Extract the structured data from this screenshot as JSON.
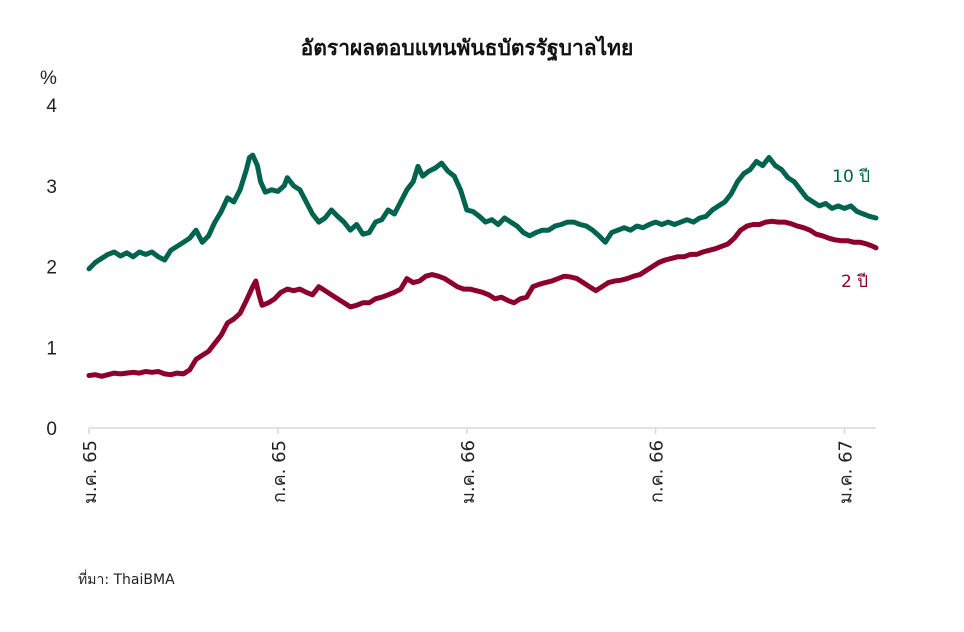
{
  "chart_data": {
    "type": "line",
    "title": "อัตราผลตอบแทนพันธบัตรรัฐบาลไทย",
    "yunit": "%",
    "ylim": [
      0,
      4
    ],
    "yticks": [
      "0",
      "1",
      "2",
      "3",
      "4"
    ],
    "xlim": [
      0,
      25
    ],
    "xticks": [
      {
        "pos": 0,
        "label": "ม.ค. 65"
      },
      {
        "pos": 6,
        "label": "ก.ค. 65"
      },
      {
        "pos": 12,
        "label": "ม.ค. 66"
      },
      {
        "pos": 18,
        "label": "ก.ค. 66"
      },
      {
        "pos": 24,
        "label": "ม.ค. 67"
      }
    ],
    "grid": false,
    "source": "ที่มา: ThaiBMA",
    "series": [
      {
        "name": "10 ปี",
        "color": "#00634f",
        "points": [
          [
            0,
            1.97
          ],
          [
            0.2,
            2.05
          ],
          [
            0.4,
            2.1
          ],
          [
            0.6,
            2.15
          ],
          [
            0.8,
            2.18
          ],
          [
            1.0,
            2.13
          ],
          [
            1.2,
            2.17
          ],
          [
            1.4,
            2.12
          ],
          [
            1.6,
            2.18
          ],
          [
            1.8,
            2.15
          ],
          [
            2.0,
            2.18
          ],
          [
            2.2,
            2.12
          ],
          [
            2.4,
            2.08
          ],
          [
            2.6,
            2.2
          ],
          [
            2.8,
            2.25
          ],
          [
            3.0,
            2.3
          ],
          [
            3.2,
            2.35
          ],
          [
            3.4,
            2.45
          ],
          [
            3.6,
            2.3
          ],
          [
            3.8,
            2.38
          ],
          [
            4.0,
            2.55
          ],
          [
            4.2,
            2.68
          ],
          [
            4.4,
            2.85
          ],
          [
            4.6,
            2.8
          ],
          [
            4.8,
            2.95
          ],
          [
            5.0,
            3.2
          ],
          [
            5.1,
            3.35
          ],
          [
            5.2,
            3.38
          ],
          [
            5.35,
            3.25
          ],
          [
            5.45,
            3.05
          ],
          [
            5.6,
            2.92
          ],
          [
            5.8,
            2.95
          ],
          [
            6.0,
            2.93
          ],
          [
            6.2,
            3.0
          ],
          [
            6.3,
            3.1
          ],
          [
            6.5,
            3.0
          ],
          [
            6.7,
            2.95
          ],
          [
            6.9,
            2.8
          ],
          [
            7.1,
            2.65
          ],
          [
            7.3,
            2.55
          ],
          [
            7.5,
            2.6
          ],
          [
            7.7,
            2.7
          ],
          [
            7.9,
            2.62
          ],
          [
            8.1,
            2.55
          ],
          [
            8.3,
            2.45
          ],
          [
            8.5,
            2.52
          ],
          [
            8.7,
            2.4
          ],
          [
            8.9,
            2.42
          ],
          [
            9.1,
            2.55
          ],
          [
            9.3,
            2.58
          ],
          [
            9.5,
            2.7
          ],
          [
            9.7,
            2.65
          ],
          [
            9.9,
            2.8
          ],
          [
            10.1,
            2.95
          ],
          [
            10.3,
            3.05
          ],
          [
            10.45,
            3.24
          ],
          [
            10.6,
            3.12
          ],
          [
            10.8,
            3.18
          ],
          [
            11.0,
            3.22
          ],
          [
            11.2,
            3.28
          ],
          [
            11.4,
            3.18
          ],
          [
            11.6,
            3.12
          ],
          [
            11.8,
            2.95
          ],
          [
            12.0,
            2.7
          ],
          [
            12.2,
            2.68
          ],
          [
            12.4,
            2.62
          ],
          [
            12.6,
            2.55
          ],
          [
            12.8,
            2.58
          ],
          [
            13.0,
            2.52
          ],
          [
            13.2,
            2.6
          ],
          [
            13.4,
            2.55
          ],
          [
            13.6,
            2.5
          ],
          [
            13.8,
            2.42
          ],
          [
            14.0,
            2.38
          ],
          [
            14.2,
            2.42
          ],
          [
            14.4,
            2.45
          ],
          [
            14.6,
            2.45
          ],
          [
            14.8,
            2.5
          ],
          [
            15.0,
            2.52
          ],
          [
            15.2,
            2.55
          ],
          [
            15.4,
            2.55
          ],
          [
            15.6,
            2.52
          ],
          [
            15.8,
            2.5
          ],
          [
            16.0,
            2.45
          ],
          [
            16.2,
            2.38
          ],
          [
            16.4,
            2.3
          ],
          [
            16.6,
            2.42
          ],
          [
            16.8,
            2.45
          ],
          [
            17.0,
            2.48
          ],
          [
            17.2,
            2.45
          ],
          [
            17.4,
            2.5
          ],
          [
            17.6,
            2.48
          ],
          [
            17.8,
            2.52
          ],
          [
            18.0,
            2.55
          ],
          [
            18.2,
            2.52
          ],
          [
            18.4,
            2.55
          ],
          [
            18.6,
            2.52
          ],
          [
            18.8,
            2.55
          ],
          [
            19.0,
            2.58
          ],
          [
            19.2,
            2.55
          ],
          [
            19.4,
            2.6
          ],
          [
            19.6,
            2.62
          ],
          [
            19.8,
            2.7
          ],
          [
            20.0,
            2.75
          ],
          [
            20.2,
            2.8
          ],
          [
            20.4,
            2.9
          ],
          [
            20.6,
            3.05
          ],
          [
            20.8,
            3.15
          ],
          [
            21.0,
            3.2
          ],
          [
            21.2,
            3.3
          ],
          [
            21.4,
            3.25
          ],
          [
            21.6,
            3.35
          ],
          [
            21.8,
            3.25
          ],
          [
            22.0,
            3.2
          ],
          [
            22.2,
            3.1
          ],
          [
            22.4,
            3.05
          ],
          [
            22.6,
            2.95
          ],
          [
            22.8,
            2.85
          ],
          [
            23.0,
            2.8
          ],
          [
            23.2,
            2.75
          ],
          [
            23.4,
            2.78
          ],
          [
            23.6,
            2.72
          ],
          [
            23.8,
            2.75
          ],
          [
            24.0,
            2.72
          ],
          [
            24.2,
            2.75
          ],
          [
            24.4,
            2.68
          ],
          [
            24.6,
            2.65
          ],
          [
            24.8,
            2.62
          ],
          [
            25.0,
            2.6
          ]
        ]
      },
      {
        "name": "2 ปี",
        "color": "#8c002d",
        "points": [
          [
            0,
            0.65
          ],
          [
            0.2,
            0.66
          ],
          [
            0.4,
            0.64
          ],
          [
            0.6,
            0.66
          ],
          [
            0.8,
            0.68
          ],
          [
            1.0,
            0.67
          ],
          [
            1.2,
            0.68
          ],
          [
            1.4,
            0.69
          ],
          [
            1.6,
            0.68
          ],
          [
            1.8,
            0.7
          ],
          [
            2.0,
            0.69
          ],
          [
            2.2,
            0.7
          ],
          [
            2.4,
            0.67
          ],
          [
            2.6,
            0.66
          ],
          [
            2.8,
            0.68
          ],
          [
            3.0,
            0.67
          ],
          [
            3.2,
            0.72
          ],
          [
            3.4,
            0.85
          ],
          [
            3.6,
            0.9
          ],
          [
            3.8,
            0.95
          ],
          [
            4.0,
            1.05
          ],
          [
            4.2,
            1.15
          ],
          [
            4.4,
            1.3
          ],
          [
            4.6,
            1.35
          ],
          [
            4.8,
            1.42
          ],
          [
            5.0,
            1.58
          ],
          [
            5.2,
            1.75
          ],
          [
            5.3,
            1.82
          ],
          [
            5.4,
            1.65
          ],
          [
            5.5,
            1.52
          ],
          [
            5.7,
            1.55
          ],
          [
            5.9,
            1.6
          ],
          [
            6.1,
            1.68
          ],
          [
            6.3,
            1.72
          ],
          [
            6.5,
            1.7
          ],
          [
            6.7,
            1.72
          ],
          [
            6.9,
            1.68
          ],
          [
            7.1,
            1.65
          ],
          [
            7.3,
            1.75
          ],
          [
            7.5,
            1.7
          ],
          [
            7.7,
            1.65
          ],
          [
            7.9,
            1.6
          ],
          [
            8.1,
            1.55
          ],
          [
            8.3,
            1.5
          ],
          [
            8.5,
            1.52
          ],
          [
            8.7,
            1.55
          ],
          [
            8.9,
            1.55
          ],
          [
            9.1,
            1.6
          ],
          [
            9.3,
            1.62
          ],
          [
            9.5,
            1.65
          ],
          [
            9.7,
            1.68
          ],
          [
            9.9,
            1.72
          ],
          [
            10.1,
            1.85
          ],
          [
            10.3,
            1.8
          ],
          [
            10.5,
            1.82
          ],
          [
            10.7,
            1.88
          ],
          [
            10.9,
            1.9
          ],
          [
            11.1,
            1.88
          ],
          [
            11.3,
            1.85
          ],
          [
            11.5,
            1.8
          ],
          [
            11.7,
            1.75
          ],
          [
            11.9,
            1.72
          ],
          [
            12.1,
            1.72
          ],
          [
            12.3,
            1.7
          ],
          [
            12.5,
            1.68
          ],
          [
            12.7,
            1.65
          ],
          [
            12.9,
            1.6
          ],
          [
            13.1,
            1.62
          ],
          [
            13.3,
            1.58
          ],
          [
            13.5,
            1.55
          ],
          [
            13.7,
            1.6
          ],
          [
            13.9,
            1.62
          ],
          [
            14.1,
            1.75
          ],
          [
            14.3,
            1.78
          ],
          [
            14.5,
            1.8
          ],
          [
            14.7,
            1.82
          ],
          [
            14.9,
            1.85
          ],
          [
            15.1,
            1.88
          ],
          [
            15.3,
            1.87
          ],
          [
            15.5,
            1.85
          ],
          [
            15.7,
            1.8
          ],
          [
            15.9,
            1.75
          ],
          [
            16.1,
            1.7
          ],
          [
            16.3,
            1.75
          ],
          [
            16.5,
            1.8
          ],
          [
            16.7,
            1.82
          ],
          [
            16.9,
            1.83
          ],
          [
            17.1,
            1.85
          ],
          [
            17.3,
            1.88
          ],
          [
            17.5,
            1.9
          ],
          [
            17.7,
            1.95
          ],
          [
            17.9,
            2.0
          ],
          [
            18.1,
            2.05
          ],
          [
            18.3,
            2.08
          ],
          [
            18.5,
            2.1
          ],
          [
            18.7,
            2.12
          ],
          [
            18.9,
            2.12
          ],
          [
            19.1,
            2.15
          ],
          [
            19.3,
            2.15
          ],
          [
            19.5,
            2.18
          ],
          [
            19.7,
            2.2
          ],
          [
            19.9,
            2.22
          ],
          [
            20.1,
            2.25
          ],
          [
            20.3,
            2.28
          ],
          [
            20.5,
            2.35
          ],
          [
            20.7,
            2.45
          ],
          [
            20.9,
            2.5
          ],
          [
            21.1,
            2.52
          ],
          [
            21.3,
            2.52
          ],
          [
            21.5,
            2.55
          ],
          [
            21.7,
            2.56
          ],
          [
            21.9,
            2.55
          ],
          [
            22.1,
            2.55
          ],
          [
            22.3,
            2.53
          ],
          [
            22.5,
            2.5
          ],
          [
            22.7,
            2.48
          ],
          [
            22.9,
            2.45
          ],
          [
            23.1,
            2.4
          ],
          [
            23.3,
            2.38
          ],
          [
            23.5,
            2.35
          ],
          [
            23.7,
            2.33
          ],
          [
            23.9,
            2.32
          ],
          [
            24.1,
            2.32
          ],
          [
            24.3,
            2.3
          ],
          [
            24.5,
            2.3
          ],
          [
            24.7,
            2.28
          ],
          [
            24.9,
            2.25
          ],
          [
            25.0,
            2.23
          ]
        ]
      }
    ]
  }
}
